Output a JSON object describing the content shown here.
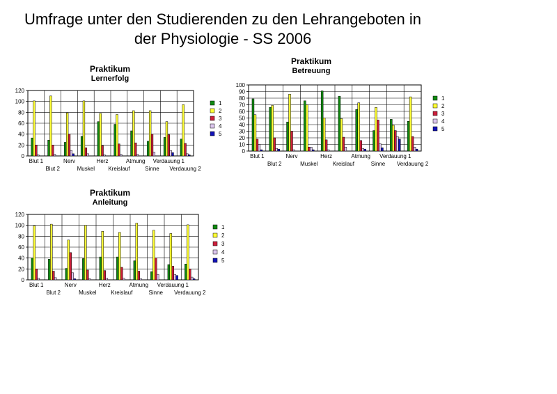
{
  "page": {
    "title_line1": "Umfrage unter den Studierenden zu den Lehrangeboten in",
    "title_line2": "der Physiologie - SS 2006"
  },
  "colors": {
    "1": "#118a11",
    "2": "#ffff33",
    "3": "#cc1f3a",
    "4": "#dcc6ee",
    "5": "#1212b8"
  },
  "chart_data": [
    {
      "type": "bar",
      "title_line1": "Praktikum",
      "title_line2": "Lernerfolg",
      "categories": [
        "Blut 1",
        "Blut 2",
        "Nerv",
        "Muskel",
        "Herz",
        "Kreislauf",
        "Atmung",
        "Sinne",
        "Verdauung 1",
        "Verdauung 2"
      ],
      "ylim": [
        0,
        120
      ],
      "yticks": [
        0,
        20,
        40,
        60,
        80,
        100,
        120
      ],
      "grid": true,
      "legend_position": "right",
      "series": [
        {
          "name": "1",
          "values": [
            33,
            29,
            25,
            36,
            63,
            58,
            46,
            27,
            34,
            31
          ]
        },
        {
          "name": "2",
          "values": [
            101,
            110,
            79,
            101,
            78,
            76,
            83,
            83,
            63,
            94
          ]
        },
        {
          "name": "3",
          "values": [
            20,
            20,
            40,
            15,
            19,
            22,
            24,
            40,
            39,
            23
          ]
        },
        {
          "name": "4",
          "values": [
            2,
            3,
            10,
            4,
            2,
            3,
            3,
            7,
            10,
            4
          ]
        },
        {
          "name": "5",
          "values": [
            0,
            0,
            4,
            0,
            0,
            0,
            0,
            0,
            6,
            2
          ]
        }
      ]
    },
    {
      "type": "bar",
      "title_line1": "Praktikum",
      "title_line2": "Betreuung",
      "categories": [
        "Blut 1",
        "Blut 2",
        "Nerv",
        "Muskel",
        "Herz",
        "Kreislauf",
        "Atmung",
        "Sinne",
        "Verdauung 1",
        "Verdauung 2"
      ],
      "ylim": [
        0,
        100
      ],
      "yticks": [
        0,
        10,
        20,
        30,
        40,
        50,
        60,
        70,
        80,
        90,
        100
      ],
      "grid": true,
      "legend_position": "right",
      "series": [
        {
          "name": "1",
          "values": [
            79,
            66,
            44,
            76,
            91,
            83,
            63,
            31,
            48,
            45
          ]
        },
        {
          "name": "2",
          "values": [
            55,
            69,
            86,
            70,
            50,
            49,
            73,
            66,
            39,
            82
          ]
        },
        {
          "name": "3",
          "values": [
            18,
            20,
            30,
            6,
            17,
            21,
            16,
            47,
            31,
            22
          ]
        },
        {
          "name": "4",
          "values": [
            10,
            4,
            2,
            6,
            2,
            6,
            4,
            11,
            22,
            6
          ]
        },
        {
          "name": "5",
          "values": [
            2,
            3,
            0,
            2,
            0,
            0,
            3,
            5,
            18,
            3
          ]
        }
      ]
    },
    {
      "type": "bar",
      "title_line1": "Praktikum",
      "title_line2": "Anleitung",
      "categories": [
        "Blut 1",
        "Blut 2",
        "Nerv",
        "Muskel",
        "Herz",
        "Kreislauf",
        "Atmung",
        "Sinne",
        "Verdauung 1",
        "Verdauung 2"
      ],
      "ylim": [
        0,
        120
      ],
      "yticks": [
        0,
        20,
        40,
        60,
        80,
        100,
        120
      ],
      "grid": true,
      "legend_position": "right",
      "series": [
        {
          "name": "1",
          "values": [
            40,
            38,
            21,
            39,
            42,
            42,
            35,
            15,
            28,
            29
          ]
        },
        {
          "name": "2",
          "values": [
            99,
            102,
            73,
            100,
            89,
            87,
            104,
            91,
            85,
            101
          ]
        },
        {
          "name": "3",
          "values": [
            20,
            16,
            50,
            18,
            17,
            23,
            16,
            40,
            25,
            20
          ]
        },
        {
          "name": "4",
          "values": [
            3,
            4,
            13,
            2,
            3,
            3,
            2,
            10,
            10,
            5
          ]
        },
        {
          "name": "5",
          "values": [
            0,
            0,
            2,
            0,
            0,
            0,
            0,
            0,
            8,
            2
          ]
        }
      ]
    }
  ]
}
